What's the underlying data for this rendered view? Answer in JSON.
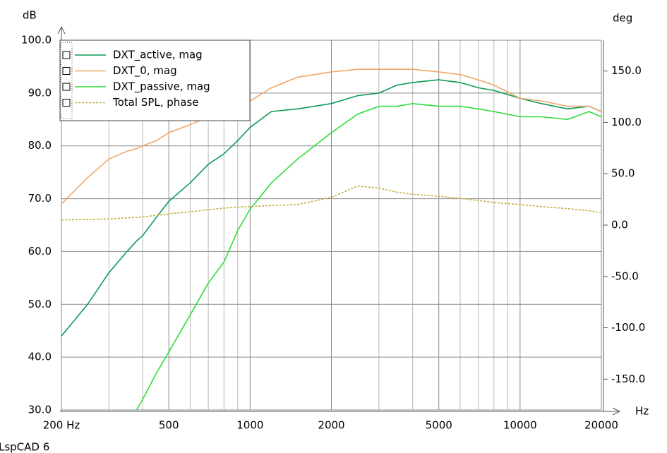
{
  "chart_data": {
    "type": "line",
    "app_label": "LspCAD 6",
    "ylabel": "dB",
    "y2label": "deg",
    "xlabel": "Hz",
    "xscale": "log",
    "grid": true,
    "xlim": [
      200,
      20000
    ],
    "ylim": [
      30,
      100
    ],
    "y2lim": [
      -180,
      180
    ],
    "xticks": [
      {
        "value": 200,
        "label": "200 Hz"
      },
      500,
      1000,
      2000,
      5000,
      10000,
      20000
    ],
    "x_minor_grid": [
      300,
      400,
      600,
      700,
      800,
      900,
      3000,
      4000,
      6000,
      7000,
      8000,
      9000
    ],
    "yticks": [
      {
        "value": 30,
        "label": "30.0"
      },
      {
        "value": 40,
        "label": "40.0"
      },
      {
        "value": 50,
        "label": "50.0"
      },
      {
        "value": 60,
        "label": "60.0"
      },
      {
        "value": 70,
        "label": "70.0"
      },
      {
        "value": 80,
        "label": "80.0"
      },
      {
        "value": 90,
        "label": "90.0"
      },
      {
        "value": 100,
        "label": "100.0"
      }
    ],
    "y2ticks": [
      {
        "value": -150,
        "label": "-150.0"
      },
      {
        "value": -100,
        "label": "-100.0"
      },
      {
        "value": -50,
        "label": "-50.0"
      },
      {
        "value": 0,
        "label": "0.0"
      },
      {
        "value": 50,
        "label": "50.0"
      },
      {
        "value": 100,
        "label": "100.0"
      },
      {
        "value": 150,
        "label": "150.0"
      }
    ],
    "x": [
      200,
      250,
      300,
      350,
      380,
      400,
      450,
      500,
      600,
      700,
      800,
      900,
      1000,
      1200,
      1500,
      2000,
      2500,
      3000,
      3500,
      4000,
      5000,
      6000,
      7000,
      8000,
      10000,
      12000,
      15000,
      18000,
      20000
    ],
    "series": [
      {
        "name": "DXT_active, mag",
        "color": "#0d9a55",
        "values": [
          44,
          50,
          56,
          60,
          62,
          63,
          66.5,
          69.5,
          73,
          76.5,
          78.5,
          81,
          83.5,
          86.5,
          87,
          88,
          89.5,
          90,
          91.5,
          92,
          92.5,
          92,
          91,
          90.5,
          89,
          88,
          87,
          87.5,
          86.5
        ]
      },
      {
        "name": "DXT_0, mag",
        "color": "#f0a868",
        "values": [
          69,
          74,
          77.5,
          79,
          79.5,
          80,
          81,
          82.5,
          84,
          85.5,
          86.5,
          87.5,
          88.5,
          91,
          93,
          94,
          94.5,
          94.5,
          94.5,
          94.5,
          94,
          93.5,
          92.5,
          91.5,
          89,
          88.5,
          87.5,
          87.5,
          86.5
        ]
      },
      {
        "name": "DXT_passive, mag",
        "color": "#2fdc3c",
        "values": [
          null,
          null,
          null,
          null,
          30,
          32,
          37,
          41,
          48,
          54,
          58,
          64,
          68,
          73,
          77.5,
          82.5,
          86,
          87.5,
          87.5,
          88,
          87.5,
          87.5,
          87,
          86.5,
          85.5,
          85.5,
          85,
          86.5,
          85.5
        ]
      },
      {
        "name": "Total SPL, phase",
        "color": "#c0b040",
        "axis": "y2",
        "dashed": true,
        "values": [
          5,
          5.5,
          6,
          7,
          7.5,
          8,
          9.5,
          11,
          13,
          15,
          16.5,
          17.5,
          18,
          19,
          20,
          27,
          38,
          36,
          32,
          30,
          28,
          26,
          24,
          22,
          20,
          18,
          16,
          14,
          12
        ]
      }
    ]
  }
}
